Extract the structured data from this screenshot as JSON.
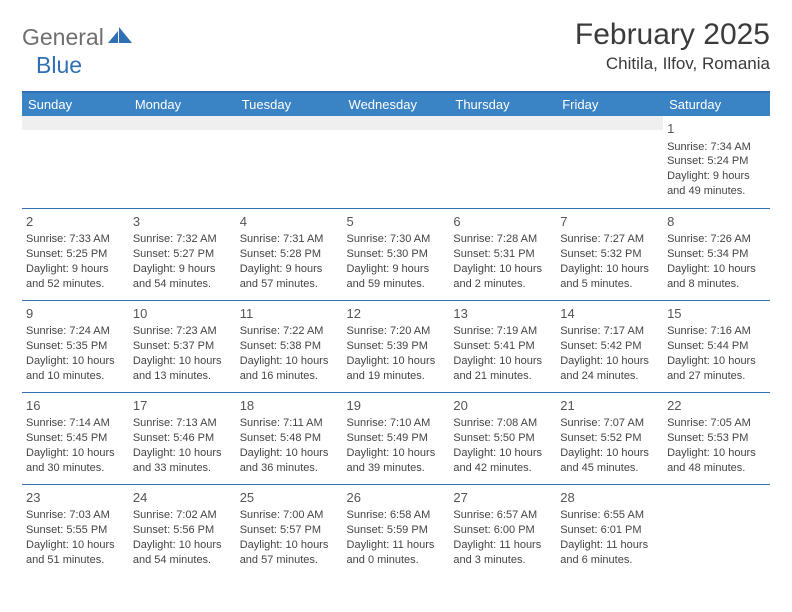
{
  "logo": {
    "part1": "General",
    "part2": "Blue"
  },
  "title": "February 2025",
  "location": "Chitila, Ilfov, Romania",
  "colors": {
    "header_bg": "#3a83c5",
    "accent": "#2f6fb4",
    "logo_gray": "#6f6f6f",
    "empty_bg": "#efefef"
  },
  "weekdays": [
    "Sunday",
    "Monday",
    "Tuesday",
    "Wednesday",
    "Thursday",
    "Friday",
    "Saturday"
  ],
  "weeks": [
    [
      null,
      null,
      null,
      null,
      null,
      null,
      {
        "n": "1",
        "sr": "Sunrise: 7:34 AM",
        "ss": "Sunset: 5:24 PM",
        "dl": "Daylight: 9 hours and 49 minutes."
      }
    ],
    [
      {
        "n": "2",
        "sr": "Sunrise: 7:33 AM",
        "ss": "Sunset: 5:25 PM",
        "dl": "Daylight: 9 hours and 52 minutes."
      },
      {
        "n": "3",
        "sr": "Sunrise: 7:32 AM",
        "ss": "Sunset: 5:27 PM",
        "dl": "Daylight: 9 hours and 54 minutes."
      },
      {
        "n": "4",
        "sr": "Sunrise: 7:31 AM",
        "ss": "Sunset: 5:28 PM",
        "dl": "Daylight: 9 hours and 57 minutes."
      },
      {
        "n": "5",
        "sr": "Sunrise: 7:30 AM",
        "ss": "Sunset: 5:30 PM",
        "dl": "Daylight: 9 hours and 59 minutes."
      },
      {
        "n": "6",
        "sr": "Sunrise: 7:28 AM",
        "ss": "Sunset: 5:31 PM",
        "dl": "Daylight: 10 hours and 2 minutes."
      },
      {
        "n": "7",
        "sr": "Sunrise: 7:27 AM",
        "ss": "Sunset: 5:32 PM",
        "dl": "Daylight: 10 hours and 5 minutes."
      },
      {
        "n": "8",
        "sr": "Sunrise: 7:26 AM",
        "ss": "Sunset: 5:34 PM",
        "dl": "Daylight: 10 hours and 8 minutes."
      }
    ],
    [
      {
        "n": "9",
        "sr": "Sunrise: 7:24 AM",
        "ss": "Sunset: 5:35 PM",
        "dl": "Daylight: 10 hours and 10 minutes."
      },
      {
        "n": "10",
        "sr": "Sunrise: 7:23 AM",
        "ss": "Sunset: 5:37 PM",
        "dl": "Daylight: 10 hours and 13 minutes."
      },
      {
        "n": "11",
        "sr": "Sunrise: 7:22 AM",
        "ss": "Sunset: 5:38 PM",
        "dl": "Daylight: 10 hours and 16 minutes."
      },
      {
        "n": "12",
        "sr": "Sunrise: 7:20 AM",
        "ss": "Sunset: 5:39 PM",
        "dl": "Daylight: 10 hours and 19 minutes."
      },
      {
        "n": "13",
        "sr": "Sunrise: 7:19 AM",
        "ss": "Sunset: 5:41 PM",
        "dl": "Daylight: 10 hours and 21 minutes."
      },
      {
        "n": "14",
        "sr": "Sunrise: 7:17 AM",
        "ss": "Sunset: 5:42 PM",
        "dl": "Daylight: 10 hours and 24 minutes."
      },
      {
        "n": "15",
        "sr": "Sunrise: 7:16 AM",
        "ss": "Sunset: 5:44 PM",
        "dl": "Daylight: 10 hours and 27 minutes."
      }
    ],
    [
      {
        "n": "16",
        "sr": "Sunrise: 7:14 AM",
        "ss": "Sunset: 5:45 PM",
        "dl": "Daylight: 10 hours and 30 minutes."
      },
      {
        "n": "17",
        "sr": "Sunrise: 7:13 AM",
        "ss": "Sunset: 5:46 PM",
        "dl": "Daylight: 10 hours and 33 minutes."
      },
      {
        "n": "18",
        "sr": "Sunrise: 7:11 AM",
        "ss": "Sunset: 5:48 PM",
        "dl": "Daylight: 10 hours and 36 minutes."
      },
      {
        "n": "19",
        "sr": "Sunrise: 7:10 AM",
        "ss": "Sunset: 5:49 PM",
        "dl": "Daylight: 10 hours and 39 minutes."
      },
      {
        "n": "20",
        "sr": "Sunrise: 7:08 AM",
        "ss": "Sunset: 5:50 PM",
        "dl": "Daylight: 10 hours and 42 minutes."
      },
      {
        "n": "21",
        "sr": "Sunrise: 7:07 AM",
        "ss": "Sunset: 5:52 PM",
        "dl": "Daylight: 10 hours and 45 minutes."
      },
      {
        "n": "22",
        "sr": "Sunrise: 7:05 AM",
        "ss": "Sunset: 5:53 PM",
        "dl": "Daylight: 10 hours and 48 minutes."
      }
    ],
    [
      {
        "n": "23",
        "sr": "Sunrise: 7:03 AM",
        "ss": "Sunset: 5:55 PM",
        "dl": "Daylight: 10 hours and 51 minutes."
      },
      {
        "n": "24",
        "sr": "Sunrise: 7:02 AM",
        "ss": "Sunset: 5:56 PM",
        "dl": "Daylight: 10 hours and 54 minutes."
      },
      {
        "n": "25",
        "sr": "Sunrise: 7:00 AM",
        "ss": "Sunset: 5:57 PM",
        "dl": "Daylight: 10 hours and 57 minutes."
      },
      {
        "n": "26",
        "sr": "Sunrise: 6:58 AM",
        "ss": "Sunset: 5:59 PM",
        "dl": "Daylight: 11 hours and 0 minutes."
      },
      {
        "n": "27",
        "sr": "Sunrise: 6:57 AM",
        "ss": "Sunset: 6:00 PM",
        "dl": "Daylight: 11 hours and 3 minutes."
      },
      {
        "n": "28",
        "sr": "Sunrise: 6:55 AM",
        "ss": "Sunset: 6:01 PM",
        "dl": "Daylight: 11 hours and 6 minutes."
      },
      null
    ]
  ]
}
